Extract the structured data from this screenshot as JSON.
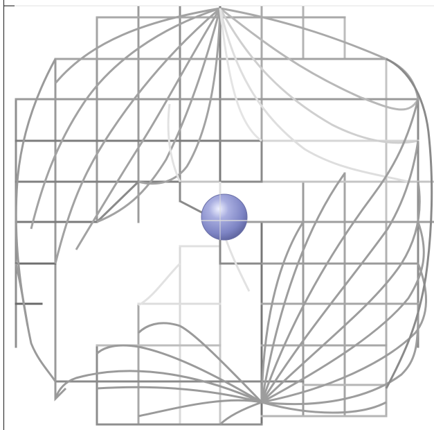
{
  "scene": {
    "background_color": "#ffffff",
    "grid_color_dark": "#6e6e6e",
    "grid_color_light": "#c8c8c8",
    "curve_color": "#9a9a9a",
    "sphere_color": "#8e94d0"
  }
}
